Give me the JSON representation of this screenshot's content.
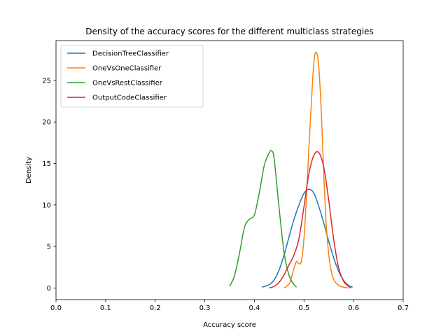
{
  "chart_data": {
    "type": "line",
    "title": "Density of the accuracy scores for the different multiclass strategies",
    "xlabel": "Accuracy score",
    "ylabel": "Density",
    "xlim": [
      0.0,
      0.7
    ],
    "ylim": [
      -1.4,
      29.8
    ],
    "x_ticks": [
      0.0,
      0.1,
      0.2,
      0.3,
      0.4,
      0.5,
      0.6,
      0.7
    ],
    "x_tick_labels": [
      "0.0",
      "0.1",
      "0.2",
      "0.3",
      "0.4",
      "0.5",
      "0.6",
      "0.7"
    ],
    "y_ticks": [
      0,
      5,
      10,
      15,
      20,
      25
    ],
    "y_tick_labels": [
      "0",
      "5",
      "10",
      "15",
      "20",
      "25"
    ],
    "grid": false,
    "legend_position": "top-left",
    "series": [
      {
        "name": "DecisionTreeClassifier",
        "color": "#1f77b4",
        "x": [
          0.415,
          0.43,
          0.44,
          0.45,
          0.46,
          0.47,
          0.48,
          0.49,
          0.5,
          0.51,
          0.52,
          0.53,
          0.54,
          0.55,
          0.56,
          0.57,
          0.58,
          0.59,
          0.598
        ],
        "y": [
          0.1,
          0.4,
          1.0,
          2.2,
          4.0,
          6.2,
          8.3,
          10.0,
          11.4,
          11.9,
          11.4,
          9.8,
          7.8,
          5.6,
          3.6,
          2.0,
          0.9,
          0.3,
          0.1
        ]
      },
      {
        "name": "OneVsOneClassifier",
        "color": "#ff7f0e",
        "x": [
          0.46,
          0.47,
          0.475,
          0.48,
          0.485,
          0.49,
          0.495,
          0.5,
          0.505,
          0.51,
          0.515,
          0.52,
          0.525,
          0.53,
          0.535,
          0.54,
          0.545,
          0.55,
          0.555,
          0.56,
          0.57,
          0.58,
          0.59
        ],
        "y": [
          0.0,
          0.5,
          1.3,
          2.4,
          3.2,
          2.9,
          3.3,
          6.0,
          11.0,
          17.0,
          22.5,
          27.2,
          28.4,
          26.5,
          21.0,
          13.5,
          7.5,
          4.0,
          2.0,
          1.0,
          0.3,
          0.1,
          0.0
        ]
      },
      {
        "name": "OneVsRestClassifier",
        "color": "#2ca02c",
        "x": [
          0.35,
          0.36,
          0.37,
          0.38,
          0.39,
          0.4,
          0.41,
          0.42,
          0.43,
          0.435,
          0.44,
          0.45,
          0.46,
          0.47,
          0.48,
          0.485
        ],
        "y": [
          0.2,
          1.5,
          4.2,
          7.3,
          8.3,
          8.8,
          11.5,
          14.8,
          16.3,
          16.5,
          15.5,
          9.5,
          4.2,
          1.5,
          0.4,
          0.1
        ]
      },
      {
        "name": "OutputCodeClassifier",
        "color": "#d62728",
        "x": [
          0.43,
          0.44,
          0.45,
          0.46,
          0.47,
          0.48,
          0.49,
          0.5,
          0.51,
          0.52,
          0.53,
          0.54,
          0.55,
          0.56,
          0.57,
          0.58,
          0.59,
          0.595
        ],
        "y": [
          0.0,
          0.2,
          0.7,
          1.6,
          2.8,
          4.0,
          6.0,
          9.8,
          13.8,
          16.0,
          16.3,
          14.5,
          10.5,
          5.8,
          2.4,
          0.8,
          0.2,
          0.0
        ]
      }
    ]
  }
}
